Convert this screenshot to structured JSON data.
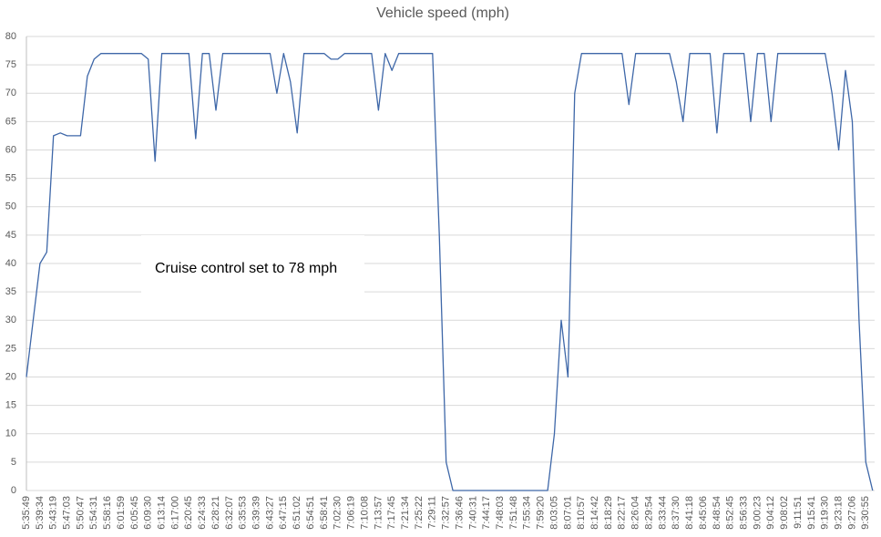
{
  "chart_data": {
    "type": "line",
    "title": "Vehicle speed (mph)",
    "annotations": [
      "Cruise control set to 78 mph"
    ],
    "categories": [
      "5:35:49",
      null,
      "5:39:34",
      null,
      "5:43:19",
      null,
      "5:47:03",
      null,
      "5:50:47",
      null,
      "5:54:31",
      null,
      "5:58:16",
      null,
      "6:01:59",
      null,
      "6:05:45",
      null,
      "6:09:30",
      null,
      "6:13:14",
      null,
      "6:17:00",
      null,
      "6:20:45",
      null,
      "6:24:33",
      null,
      "6:28:21",
      null,
      "6:32:07",
      null,
      "6:35:53",
      null,
      "6:39:39",
      null,
      "6:43:27",
      null,
      "6:47:15",
      null,
      "6:51:02",
      null,
      "6:54:51",
      null,
      "6:58:41",
      null,
      "7:02:30",
      null,
      "7:06:19",
      null,
      "7:10:08",
      null,
      "7:13:57",
      null,
      "7:17:45",
      null,
      "7:21:34",
      null,
      "7:25:22",
      null,
      "7:29:11",
      null,
      "7:32:57",
      null,
      "7:36:46",
      null,
      "7:40:31",
      null,
      "7:44:17",
      null,
      "7:48:03",
      null,
      "7:51:48",
      null,
      "7:55:34",
      null,
      "7:59:20",
      null,
      "8:03:05",
      null,
      "8:07:01",
      null,
      "8:10:57",
      null,
      "8:14:42",
      null,
      "8:18:29",
      null,
      "8:22:17",
      null,
      "8:26:04",
      null,
      "8:29:54",
      null,
      "8:33:44",
      null,
      "8:37:30",
      null,
      "8:41:18",
      null,
      "8:45:06",
      null,
      "8:48:54",
      null,
      "8:52:45",
      null,
      "8:56:33",
      null,
      "9:00:23",
      null,
      "9:04:12",
      null,
      "9:08:02",
      null,
      "9:11:51",
      null,
      "9:15:41",
      null,
      "9:19:30",
      null,
      "9:23:18",
      null,
      "9:27:06",
      null,
      "9:30:55",
      null
    ],
    "series": [
      {
        "name": "Vehicle speed (mph)",
        "color": "#3e67a8",
        "values": [
          20,
          30,
          40,
          42,
          62.5,
          63,
          62.5,
          62.5,
          62.5,
          73,
          76,
          77,
          77,
          77,
          77,
          77,
          77,
          77,
          76,
          58,
          77,
          77,
          77,
          77,
          77,
          62,
          77,
          77,
          67,
          77,
          77,
          77,
          77,
          77,
          77,
          77,
          77,
          70,
          77,
          72,
          63,
          77,
          77,
          77,
          77,
          76,
          76,
          77,
          77,
          77,
          77,
          77,
          67,
          77,
          74,
          77,
          77,
          77,
          77,
          77,
          77,
          45,
          5,
          0,
          0,
          0,
          0,
          0,
          0,
          0,
          0,
          0,
          0,
          0,
          0,
          0,
          0,
          0,
          10,
          30,
          20,
          70,
          77,
          77,
          77,
          77,
          77,
          77,
          77,
          68,
          77,
          77,
          77,
          77,
          77,
          77,
          72,
          65,
          77,
          77,
          77,
          77,
          63,
          77,
          77,
          77,
          77,
          65,
          77,
          77,
          65,
          77,
          77,
          77,
          77,
          77,
          77,
          77,
          77,
          70,
          60,
          74,
          65,
          30,
          5,
          0
        ]
      }
    ],
    "ylim": [
      0,
      80
    ],
    "yticks": [
      0,
      5,
      10,
      15,
      20,
      25,
      30,
      35,
      40,
      45,
      50,
      55,
      60,
      65,
      70,
      75,
      80
    ],
    "grid": true
  }
}
